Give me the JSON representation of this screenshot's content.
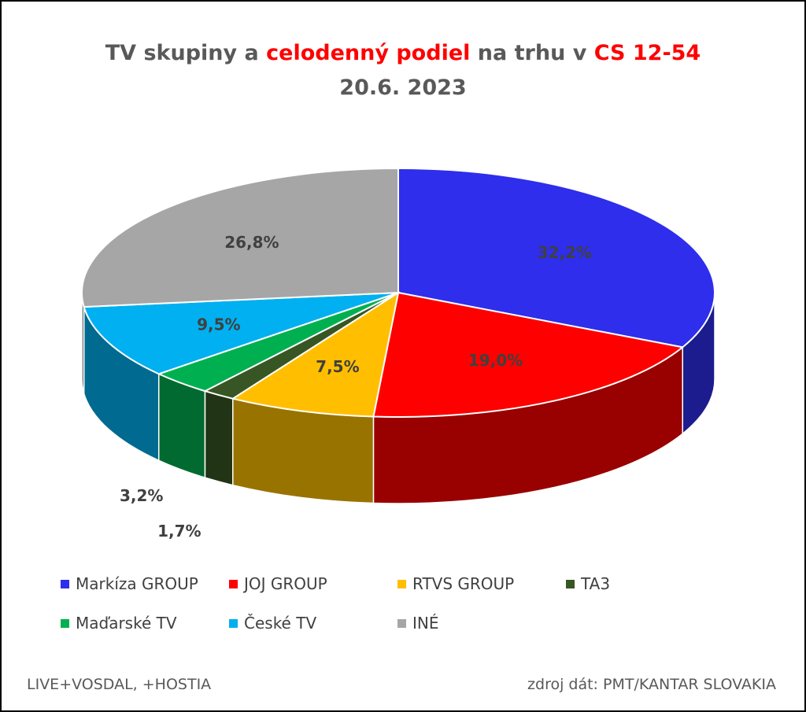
{
  "title": {
    "part1": "TV skupiny a ",
    "part2": "celodenný podiel",
    "part3": " na trhu v ",
    "part4": "CS 12-54",
    "line2": "20.6. 2023"
  },
  "colors": {
    "title_text": "#595959",
    "title_highlight": "#ff0000"
  },
  "chart_data": {
    "type": "pie",
    "style": "3d",
    "title": "TV skupiny a celodenný podiel na trhu v CS 12-54 20.6. 2023",
    "legend_position": "bottom",
    "slices": [
      {
        "label": "Markíza GROUP",
        "value": 32.2,
        "display": "32,2%",
        "color": "#2e2eec"
      },
      {
        "label": "JOJ GROUP",
        "value": 19.0,
        "display": "19,0%",
        "color": "#ff0000"
      },
      {
        "label": "RTVS GROUP",
        "value": 7.5,
        "display": "7,5%",
        "color": "#ffbf00"
      },
      {
        "label": "TA3",
        "value": 1.7,
        "display": "1,7%",
        "color": "#375623"
      },
      {
        "label": "Maďarské  TV",
        "value": 3.2,
        "display": "3,2%",
        "color": "#00b050"
      },
      {
        "label": "České  TV",
        "value": 9.5,
        "display": "9,5%",
        "color": "#00b0f0"
      },
      {
        "label": "INÉ",
        "value": 26.8,
        "display": "26,8%",
        "color": "#a6a6a6"
      }
    ]
  },
  "footer": {
    "left": "LIVE+VOSDAL, +HOSTIA",
    "right": "zdroj dát: PMT/KANTAR SLOVAKIA"
  }
}
